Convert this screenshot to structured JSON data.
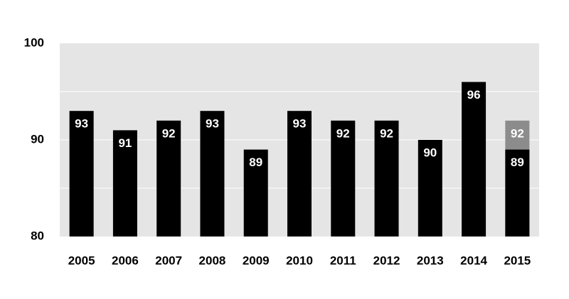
{
  "chart_data": {
    "type": "bar",
    "categories": [
      "2005",
      "2006",
      "2007",
      "2008",
      "2009",
      "2010",
      "2011",
      "2012",
      "2013",
      "2014",
      "2015"
    ],
    "series": [
      {
        "color": "#8c8c8c",
        "values": [
          null,
          null,
          null,
          null,
          null,
          null,
          null,
          null,
          null,
          null,
          92
        ]
      },
      {
        "color": "#000000",
        "values": [
          93,
          91,
          92,
          93,
          89,
          93,
          92,
          92,
          90,
          96,
          89
        ]
      }
    ],
    "ylim": [
      80,
      100
    ],
    "yticks": [
      80,
      90,
      100
    ],
    "gridlines": [
      85,
      90,
      95
    ],
    "background": "#e5e5e5"
  }
}
